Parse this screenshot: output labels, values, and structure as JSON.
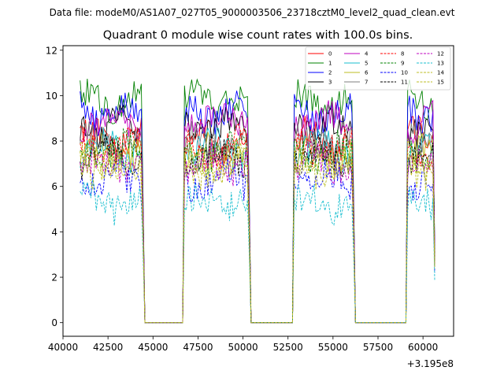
{
  "header_text": "Data file: modeM0/AS1A07_027T05_9000003506_23718cztM0_level2_quad_clean.evt",
  "chart_data": {
    "type": "line",
    "title": "Quadrant 0 module wise count rates with 100.0s bins.",
    "xlabel": "",
    "ylabel": "",
    "x_offset_label": "+3.195e8",
    "xlim": [
      40000,
      61700
    ],
    "ylim": [
      -0.6,
      12.2
    ],
    "x_ticks": [
      40000,
      42500,
      45000,
      47500,
      50000,
      52500,
      55000,
      57500,
      60000
    ],
    "x_tick_labels": [
      "40000",
      "42500",
      "45000",
      "47500",
      "50000",
      "52500",
      "55000",
      "57500",
      "60000"
    ],
    "y_ticks": [
      0,
      2,
      4,
      6,
      8,
      10,
      12
    ],
    "y_tick_labels": [
      "0",
      "2",
      "4",
      "6",
      "8",
      "10",
      "12"
    ],
    "bin_seconds": 100,
    "x_start": 40950,
    "x_end": 60650,
    "active_intervals": [
      [
        40950,
        44450
      ],
      [
        46750,
        50350
      ],
      [
        52850,
        56150
      ],
      [
        59150,
        60650
      ]
    ],
    "legend_position": "upper right",
    "series": [
      {
        "name": "0",
        "color": "#ff0000",
        "dash": "solid",
        "mean": 8.1
      },
      {
        "name": "1",
        "color": "#008000",
        "dash": "solid",
        "mean": 9.8
      },
      {
        "name": "2",
        "color": "#0000ff",
        "dash": "solid",
        "mean": 9.2
      },
      {
        "name": "3",
        "color": "#000000",
        "dash": "solid",
        "mean": 8.6
      },
      {
        "name": "4",
        "color": "#bf00bf",
        "dash": "solid",
        "mean": 8.9
      },
      {
        "name": "5",
        "color": "#17becf",
        "dash": "solid",
        "mean": 7.6
      },
      {
        "name": "6",
        "color": "#bcbd22",
        "dash": "solid",
        "mean": 7.4
      },
      {
        "name": "7",
        "color": "#7f7f7f",
        "dash": "solid",
        "mean": 7.9
      },
      {
        "name": "8",
        "color": "#ff0000",
        "dash": "dashed",
        "mean": 7.7
      },
      {
        "name": "9",
        "color": "#008000",
        "dash": "dashed",
        "mean": 7.5
      },
      {
        "name": "10",
        "color": "#0000ff",
        "dash": "dashed",
        "mean": 6.3
      },
      {
        "name": "11",
        "color": "#000000",
        "dash": "dashed",
        "mean": 7.3
      },
      {
        "name": "12",
        "color": "#bf00bf",
        "dash": "dashed",
        "mean": 7.0
      },
      {
        "name": "13",
        "color": "#17becf",
        "dash": "dashed",
        "mean": 5.3
      },
      {
        "name": "14",
        "color": "#bcbd22",
        "dash": "dashed",
        "mean": 7.1
      },
      {
        "name": "15",
        "color": "#bcbd22",
        "dash": "dashed",
        "mean": 6.8
      }
    ]
  }
}
